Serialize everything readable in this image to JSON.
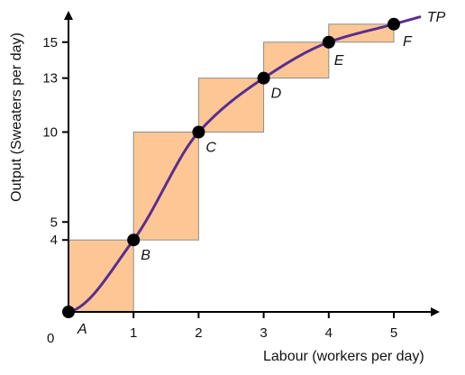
{
  "chart_data": {
    "type": "line",
    "title": "",
    "xlabel": "Labour (workers per day)",
    "ylabel": "Output (Sweaters per day)",
    "origin_label": "0",
    "xlim": [
      0,
      5.6
    ],
    "ylim": [
      0,
      17
    ],
    "x_ticks": [
      "1",
      "2",
      "3",
      "4",
      "5"
    ],
    "y_ticks": [
      "4",
      "5",
      "10",
      "13",
      "15"
    ],
    "series": [
      {
        "name": "TP",
        "x": [
          0,
          1,
          2,
          3,
          4,
          5
        ],
        "y": [
          0,
          4,
          10,
          13,
          15,
          16
        ]
      }
    ],
    "points": [
      {
        "label": "A",
        "x": 0,
        "y": 0
      },
      {
        "label": "B",
        "x": 1,
        "y": 4
      },
      {
        "label": "C",
        "x": 2,
        "y": 10
      },
      {
        "label": "D",
        "x": 3,
        "y": 13
      },
      {
        "label": "E",
        "x": 4,
        "y": 15
      },
      {
        "label": "F",
        "x": 5,
        "y": 16
      }
    ],
    "curve_end": {
      "x": 5.4,
      "y": 16.4
    },
    "colors": {
      "curve": "#5b2d8e",
      "steps": "#fcc795",
      "step_border": "#8c8c8c",
      "points": "#000000",
      "axis": "#000000"
    },
    "grid": false,
    "legend": "none"
  }
}
